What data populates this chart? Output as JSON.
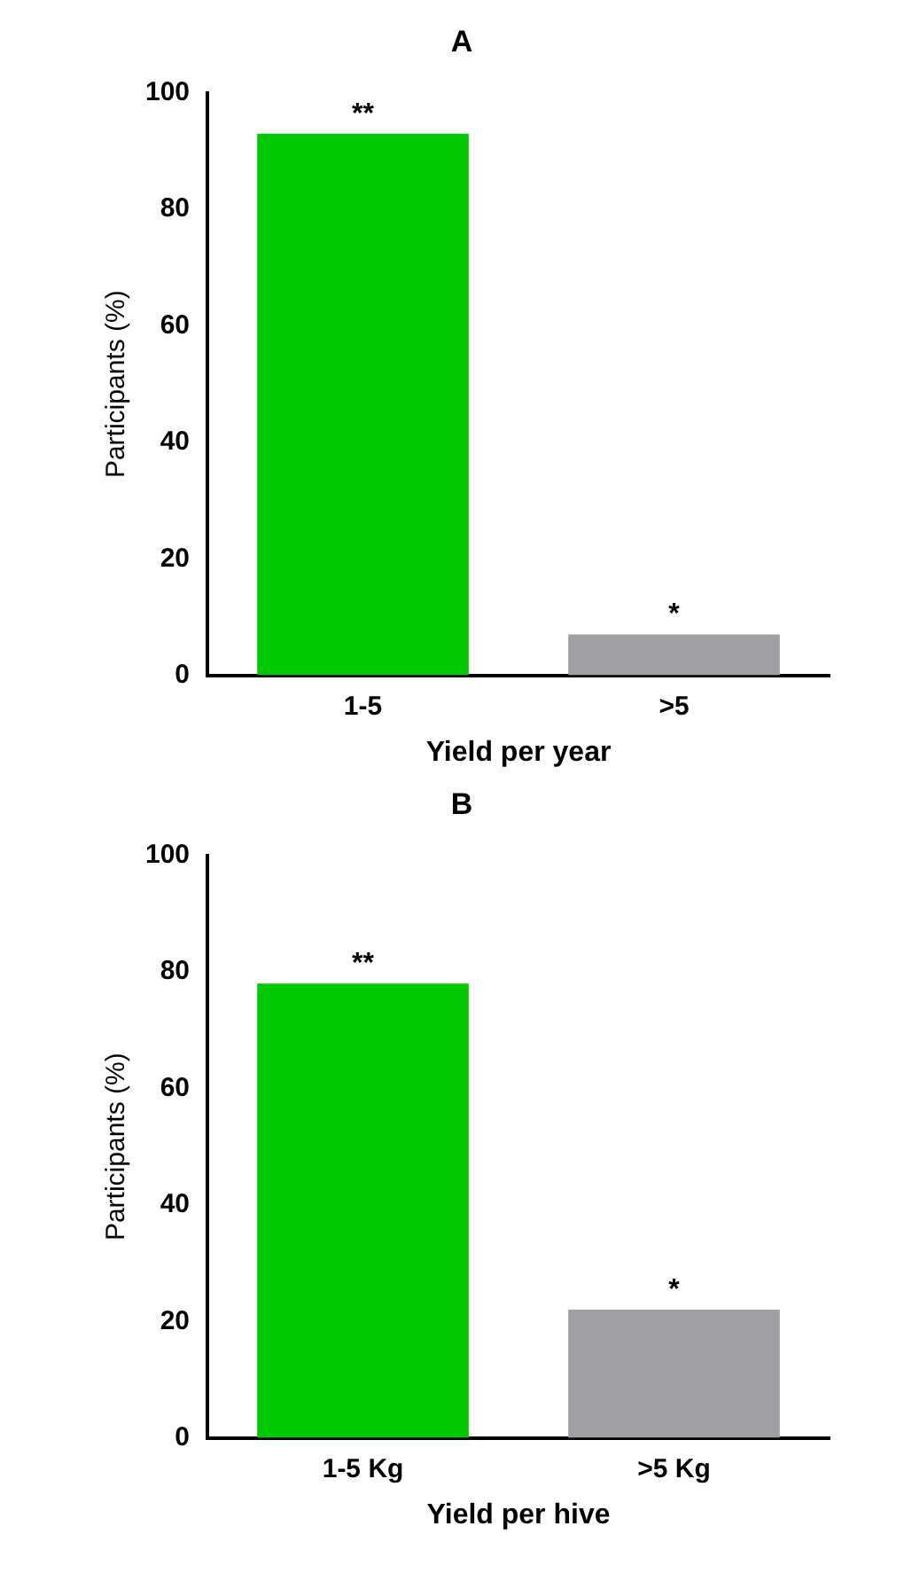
{
  "chart_data": [
    {
      "type": "bar",
      "title": "A",
      "xlabel": "Yield per year",
      "ylabel": "Participants (%)",
      "categories": [
        "1-5",
        ">5"
      ],
      "values": [
        93,
        7
      ],
      "colors": [
        "#00c800",
        "#a0a0a4"
      ],
      "ylim": [
        0,
        100
      ],
      "yticks": [
        0,
        20,
        40,
        60,
        80,
        100
      ],
      "grid": false,
      "legend": false,
      "annotations": [
        {
          "text": "**",
          "x": "1-5",
          "y": 93
        },
        {
          "text": "*",
          "x": ">5",
          "y": 7
        }
      ]
    },
    {
      "type": "bar",
      "title": "B",
      "xlabel": "Yield per hive",
      "ylabel": "Participants (%)",
      "categories": [
        "1-5 Kg",
        ">5 Kg"
      ],
      "values": [
        78,
        22
      ],
      "colors": [
        "#00c800",
        "#a0a0a4"
      ],
      "ylim": [
        0,
        100
      ],
      "yticks": [
        0,
        20,
        40,
        60,
        80,
        100
      ],
      "grid": false,
      "legend": false,
      "annotations": [
        {
          "text": "**",
          "x": "1-5 Kg",
          "y": 78
        },
        {
          "text": "*",
          "x": ">5 Kg",
          "y": 22
        }
      ]
    }
  ]
}
